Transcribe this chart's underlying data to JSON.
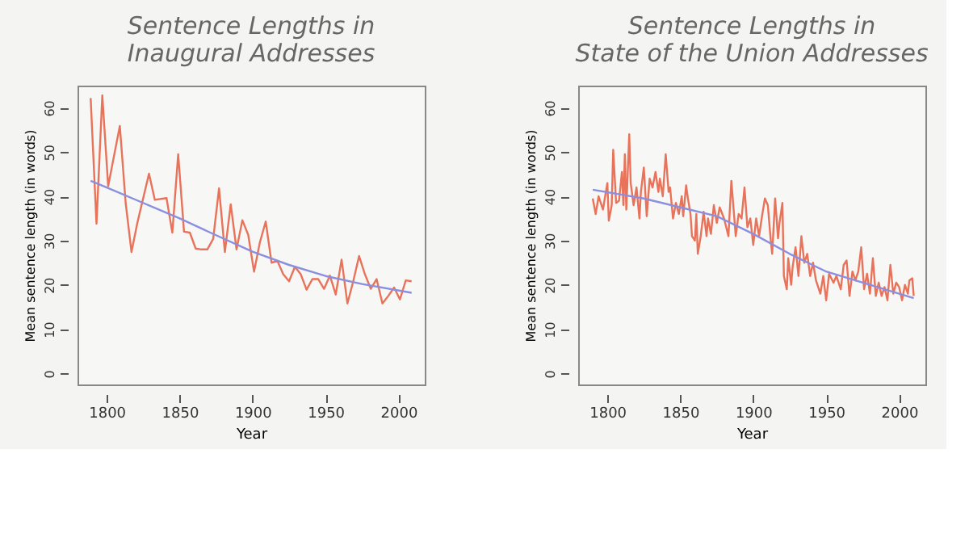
{
  "chart_data": [
    {
      "type": "line",
      "title": "Sentence Lengths in\nInaugural Addresses",
      "xlabel": "Year",
      "ylabel": "Mean sentence length (in words)",
      "xlim": [
        1780,
        2018
      ],
      "ylim": [
        -2.5,
        65
      ],
      "xticks": [
        1800,
        1850,
        1900,
        1950,
        2000
      ],
      "yticks": [
        0,
        10,
        20,
        30,
        40,
        50,
        60
      ],
      "grid": false,
      "marker": "none",
      "line_style": "solid",
      "series": [
        {
          "color": "#e8735a",
          "x": [
            1789,
            1793,
            1797,
            1801,
            1809,
            1813,
            1817,
            1821,
            1829,
            1833,
            1841,
            1845,
            1849,
            1853,
            1857,
            1861,
            1865,
            1869,
            1873,
            1877,
            1881,
            1885,
            1889,
            1893,
            1897,
            1901,
            1905,
            1909,
            1913,
            1917,
            1921,
            1925,
            1929,
            1933,
            1937,
            1941,
            1945,
            1949,
            1953,
            1957,
            1961,
            1965,
            1969,
            1973,
            1977,
            1981,
            1985,
            1989,
            1993,
            1997,
            2001,
            2005,
            2009
          ],
          "values": [
            62.2,
            33.8,
            62.8,
            42.3,
            55.9,
            38.5,
            27.4,
            34.0,
            45.1,
            39.2,
            39.6,
            31.8,
            49.5,
            32.0,
            31.8,
            28.2,
            28.0,
            28.0,
            30.4,
            41.8,
            27.4,
            38.2,
            28.0,
            34.6,
            31.3,
            23.0,
            29.6,
            34.3,
            25.0,
            25.4,
            22.4,
            20.8,
            24.1,
            22.4,
            18.9,
            21.3,
            21.3,
            19.1,
            22.1,
            17.8,
            25.7,
            15.8,
            20.8,
            26.5,
            22.4,
            19.1,
            21.3,
            15.8,
            17.5,
            19.4,
            16.7,
            21.0,
            20.8
          ]
        },
        {
          "type": "line",
          "color": "#8b8fe0",
          "x": [
            1789,
            1800,
            1825,
            1850,
            1875,
            1900,
            1925,
            1950,
            1975,
            2009
          ],
          "values": [
            43.5,
            42,
            38.5,
            35,
            31.2,
            27.5,
            24.5,
            22,
            20.2,
            18.2
          ]
        }
      ]
    },
    {
      "type": "line",
      "title": "Sentence Lengths in\nState of the Union Addresses",
      "xlabel": "Year",
      "ylabel": "Mean sentence length (in words)",
      "xlim": [
        1780,
        2018
      ],
      "ylim": [
        -2.5,
        65
      ],
      "xticks": [
        1800,
        1850,
        1900,
        1950,
        2000
      ],
      "yticks": [
        0,
        10,
        20,
        30,
        40,
        50,
        60
      ],
      "grid": false,
      "marker": "none",
      "line_style": "solid",
      "series": [
        {
          "color": "#e8735a",
          "x": [
            1790,
            1792,
            1794,
            1797,
            1800,
            1801,
            1803,
            1804,
            1806,
            1808,
            1810,
            1811,
            1812,
            1813,
            1815,
            1816,
            1818,
            1820,
            1822,
            1823,
            1825,
            1827,
            1829,
            1831,
            1833,
            1835,
            1836,
            1838,
            1840,
            1842,
            1843,
            1845,
            1847,
            1849,
            1851,
            1852,
            1854,
            1855,
            1857,
            1858,
            1860,
            1861,
            1862,
            1864,
            1866,
            1868,
            1869,
            1871,
            1873,
            1875,
            1877,
            1880,
            1883,
            1885,
            1888,
            1890,
            1892,
            1894,
            1896,
            1898,
            1900,
            1902,
            1904,
            1906,
            1908,
            1910,
            1912,
            1913,
            1915,
            1917,
            1918,
            1920,
            1921,
            1923,
            1924,
            1926,
            1927,
            1929,
            1931,
            1933,
            1935,
            1937,
            1939,
            1941,
            1943,
            1946,
            1948,
            1950,
            1952,
            1955,
            1957,
            1960,
            1962,
            1964,
            1966,
            1968,
            1970,
            1972,
            1974,
            1976,
            1978,
            1980,
            1982,
            1984,
            1986,
            1988,
            1990,
            1992,
            1994,
            1996,
            1998,
            2000,
            2002,
            2004,
            2006,
            2007,
            2009,
            2010
          ],
          "values": [
            39.5,
            36,
            40,
            37,
            43,
            34.5,
            38,
            50.5,
            38.5,
            39,
            45.5,
            38,
            49.5,
            37,
            54,
            43,
            38,
            42,
            35,
            41,
            46.5,
            35.5,
            44,
            42,
            45.5,
            41,
            44,
            40,
            49.5,
            41,
            42,
            35,
            38.5,
            36,
            40,
            35.5,
            42.5,
            40,
            36,
            31,
            30,
            36,
            27,
            31,
            36.5,
            31,
            35,
            31.5,
            38,
            34,
            37.5,
            35,
            31,
            43.5,
            31,
            36,
            35,
            42,
            33,
            35,
            29,
            35,
            31,
            35.5,
            39.5,
            38,
            30,
            27,
            39.5,
            30.5,
            34,
            38.5,
            22,
            19,
            26,
            20,
            24,
            28.5,
            22,
            31,
            25,
            27,
            22,
            25,
            21,
            18,
            22,
            16.5,
            22.5,
            20.5,
            22,
            19,
            24.5,
            25.5,
            17.5,
            23,
            21,
            23,
            28.5,
            19,
            22.5,
            18,
            26,
            17.5,
            20.5,
            17.5,
            19.5,
            16.5,
            24.5,
            18,
            20.5,
            19.5,
            16.5,
            20,
            18,
            21,
            21.5,
            17.5
          ]
        },
        {
          "type": "line",
          "color": "#8b8fe0",
          "x": [
            1790,
            1825,
            1850,
            1875,
            1900,
            1925,
            1950,
            1975,
            2010
          ],
          "values": [
            41.5,
            39.5,
            37.5,
            35.5,
            31.5,
            27,
            23,
            20.5,
            17
          ]
        }
      ]
    }
  ]
}
